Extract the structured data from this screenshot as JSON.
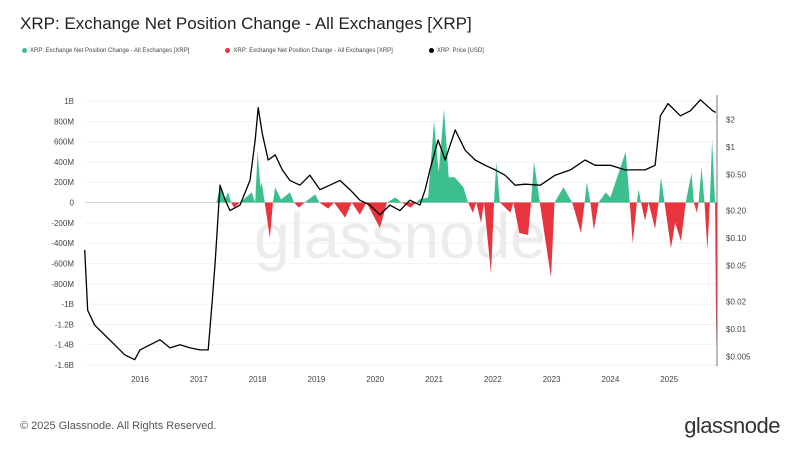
{
  "title": "XRP: Exchange Net Position Change - All Exchanges [XRP]",
  "legend": [
    {
      "label": "XRP: Exchange Net Position Change - All Exchanges [XRP]",
      "color": "#3cbf8c"
    },
    {
      "label": "XRP: Exchange Net Position Change - All Exchanges [XRP]",
      "color": "#e8343c"
    },
    {
      "label": "XRP: Price [USD]",
      "color": "#000000"
    }
  ],
  "footer": "© 2025 Glassnode. All Rights Reserved.",
  "brand": "glassnode",
  "watermark": "glassnode",
  "chart_data": {
    "type": "area+line",
    "title": "XRP: Exchange Net Position Change - All Exchanges [XRP]",
    "x_ticks": [
      "2016",
      "2017",
      "2018",
      "2019",
      "2020",
      "2021",
      "2022",
      "2023",
      "2024",
      "2025"
    ],
    "xlim": [
      2015.06,
      2025.85
    ],
    "y_left": {
      "ticks": [
        "1B",
        "800M",
        "600M",
        "400M",
        "200M",
        "0",
        "-200M",
        "-400M",
        "-600M",
        "-800M",
        "-1B",
        "-1.2B",
        "-1.4B",
        "-1.6B"
      ],
      "ylim_millions": [
        -1600,
        1000
      ],
      "grid": true
    },
    "y_right": {
      "scale": "log",
      "ticks": [
        "$2",
        "$1",
        "$0.50",
        "$0.20",
        "$0.10",
        "$0.05",
        "$0.02",
        "$0.01",
        "$0.005"
      ],
      "tick_values": [
        2,
        1,
        0.5,
        0.2,
        0.1,
        0.05,
        0.02,
        0.01,
        0.005
      ],
      "ylim": [
        0.0045,
        4
      ]
    },
    "positive_color": "#3cbf8c",
    "negative_color": "#e8343c",
    "net_position_millions": [
      [
        2017.3,
        0
      ],
      [
        2017.36,
        150
      ],
      [
        2017.45,
        40
      ],
      [
        2017.5,
        100
      ],
      [
        2017.55,
        0
      ],
      [
        2017.6,
        -50
      ],
      [
        2017.7,
        0
      ],
      [
        2017.9,
        100
      ],
      [
        2017.96,
        0
      ],
      [
        2018.0,
        500
      ],
      [
        2018.05,
        150
      ],
      [
        2018.07,
        200
      ],
      [
        2018.12,
        0
      ],
      [
        2018.21,
        -350
      ],
      [
        2018.26,
        0
      ],
      [
        2018.3,
        150
      ],
      [
        2018.4,
        30
      ],
      [
        2018.55,
        100
      ],
      [
        2018.62,
        0
      ],
      [
        2018.7,
        -50
      ],
      [
        2018.8,
        0
      ],
      [
        2018.98,
        80
      ],
      [
        2019.05,
        0
      ],
      [
        2019.2,
        -60
      ],
      [
        2019.3,
        0
      ],
      [
        2019.49,
        -150
      ],
      [
        2019.6,
        0
      ],
      [
        2019.74,
        -120
      ],
      [
        2019.85,
        0
      ],
      [
        2020.08,
        -250
      ],
      [
        2020.2,
        0
      ],
      [
        2020.34,
        50
      ],
      [
        2020.45,
        0
      ],
      [
        2020.6,
        -50
      ],
      [
        2020.75,
        30
      ],
      [
        2020.9,
        50
      ],
      [
        2021.0,
        800
      ],
      [
        2021.08,
        300
      ],
      [
        2021.17,
        920
      ],
      [
        2021.25,
        250
      ],
      [
        2021.35,
        250
      ],
      [
        2021.5,
        150
      ],
      [
        2021.58,
        0
      ],
      [
        2021.66,
        -100
      ],
      [
        2021.72,
        0
      ],
      [
        2021.8,
        -200
      ],
      [
        2021.85,
        0
      ],
      [
        2021.97,
        -700
      ],
      [
        2022.02,
        0
      ],
      [
        2022.06,
        400
      ],
      [
        2022.12,
        0
      ],
      [
        2022.3,
        -100
      ],
      [
        2022.35,
        0
      ],
      [
        2022.45,
        -300
      ],
      [
        2022.6,
        -320
      ],
      [
        2022.65,
        0
      ],
      [
        2022.7,
        400
      ],
      [
        2022.8,
        0
      ],
      [
        2022.99,
        -740
      ],
      [
        2023.05,
        0
      ],
      [
        2023.2,
        150
      ],
      [
        2023.35,
        0
      ],
      [
        2023.5,
        -300
      ],
      [
        2023.56,
        0
      ],
      [
        2023.6,
        200
      ],
      [
        2023.66,
        0
      ],
      [
        2023.72,
        -270
      ],
      [
        2023.8,
        0
      ],
      [
        2023.92,
        100
      ],
      [
        2024.0,
        50
      ],
      [
        2024.26,
        500
      ],
      [
        2024.33,
        0
      ],
      [
        2024.38,
        -400
      ],
      [
        2024.45,
        0
      ],
      [
        2024.48,
        130
      ],
      [
        2024.52,
        0
      ],
      [
        2024.59,
        -180
      ],
      [
        2024.65,
        0
      ],
      [
        2024.76,
        -260
      ],
      [
        2024.82,
        0
      ],
      [
        2024.86,
        250
      ],
      [
        2024.92,
        0
      ],
      [
        2025.03,
        -450
      ],
      [
        2025.1,
        -200
      ],
      [
        2025.2,
        -380
      ],
      [
        2025.28,
        0
      ],
      [
        2025.38,
        290
      ],
      [
        2025.42,
        0
      ],
      [
        2025.47,
        -100
      ],
      [
        2025.5,
        0
      ],
      [
        2025.55,
        350
      ],
      [
        2025.6,
        0
      ],
      [
        2025.65,
        -470
      ],
      [
        2025.69,
        0
      ],
      [
        2025.73,
        620
      ],
      [
        2025.78,
        0
      ],
      [
        2025.8,
        -1400
      ],
      [
        2025.83,
        0
      ]
    ],
    "price_usd": [
      [
        2015.06,
        0.074
      ],
      [
        2015.11,
        0.016
      ],
      [
        2015.23,
        0.011
      ],
      [
        2015.4,
        0.0086
      ],
      [
        2015.57,
        0.0067
      ],
      [
        2015.74,
        0.0052
      ],
      [
        2015.91,
        0.0046
      ],
      [
        2016.0,
        0.0059
      ],
      [
        2016.17,
        0.0067
      ],
      [
        2016.34,
        0.0076
      ],
      [
        2016.51,
        0.0062
      ],
      [
        2016.68,
        0.0067
      ],
      [
        2016.85,
        0.0062
      ],
      [
        2017.02,
        0.0059
      ],
      [
        2017.16,
        0.0059
      ],
      [
        2017.23,
        0.0208
      ],
      [
        2017.28,
        0.057
      ],
      [
        2017.36,
        0.38
      ],
      [
        2017.45,
        0.26
      ],
      [
        2017.53,
        0.2
      ],
      [
        2017.7,
        0.23
      ],
      [
        2017.87,
        0.43
      ],
      [
        2017.96,
        1.2
      ],
      [
        2018.01,
        2.7
      ],
      [
        2018.08,
        1.4
      ],
      [
        2018.18,
        0.72
      ],
      [
        2018.3,
        0.82
      ],
      [
        2018.42,
        0.56
      ],
      [
        2018.55,
        0.43
      ],
      [
        2018.72,
        0.38
      ],
      [
        2018.89,
        0.49
      ],
      [
        2019.06,
        0.34
      ],
      [
        2019.23,
        0.38
      ],
      [
        2019.4,
        0.43
      ],
      [
        2019.57,
        0.34
      ],
      [
        2019.74,
        0.26
      ],
      [
        2019.91,
        0.23
      ],
      [
        2020.08,
        0.18
      ],
      [
        2020.25,
        0.23
      ],
      [
        2020.42,
        0.2
      ],
      [
        2020.59,
        0.26
      ],
      [
        2020.76,
        0.23
      ],
      [
        2020.85,
        0.34
      ],
      [
        2020.93,
        0.56
      ],
      [
        2021.07,
        1.19
      ],
      [
        2021.19,
        0.72
      ],
      [
        2021.36,
        1.54
      ],
      [
        2021.53,
        0.92
      ],
      [
        2021.7,
        0.72
      ],
      [
        2021.87,
        0.63
      ],
      [
        2022.04,
        0.56
      ],
      [
        2022.21,
        0.49
      ],
      [
        2022.38,
        0.38
      ],
      [
        2022.55,
        0.39
      ],
      [
        2022.81,
        0.38
      ],
      [
        2023.06,
        0.49
      ],
      [
        2023.32,
        0.56
      ],
      [
        2023.57,
        0.72
      ],
      [
        2023.74,
        0.63
      ],
      [
        2024.0,
        0.63
      ],
      [
        2024.25,
        0.56
      ],
      [
        2024.59,
        0.56
      ],
      [
        2024.76,
        0.63
      ],
      [
        2024.85,
        2.2
      ],
      [
        2024.98,
        3.0
      ],
      [
        2025.19,
        2.2
      ],
      [
        2025.36,
        2.5
      ],
      [
        2025.53,
        3.3
      ],
      [
        2025.74,
        2.5
      ],
      [
        2025.79,
        2.4
      ]
    ]
  }
}
